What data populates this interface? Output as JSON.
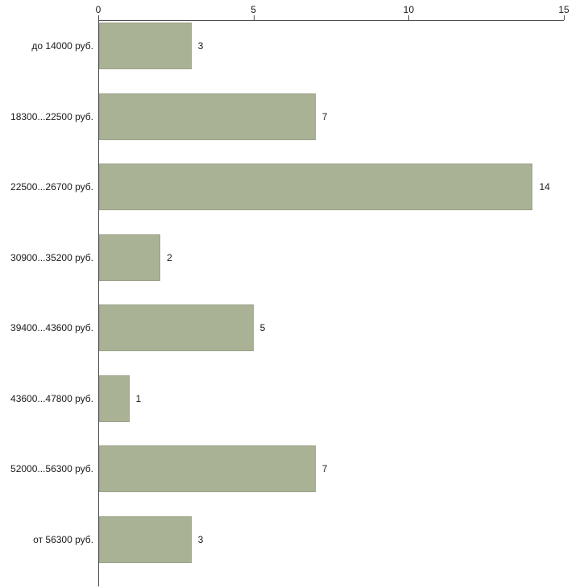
{
  "chart_data": {
    "type": "bar",
    "orientation": "horizontal",
    "title": "",
    "xlabel": "",
    "ylabel": "",
    "categories": [
      "до 14000 руб.",
      "18300...22500 руб.",
      "22500...26700 руб.",
      "30900...35200 руб.",
      "39400...43600 руб.",
      "43600...47800 руб.",
      "52000...56300 руб.",
      "от 56300 руб."
    ],
    "values": [
      3,
      7,
      14,
      2,
      5,
      1,
      7,
      3
    ],
    "value_labels": [
      "3",
      "7",
      "14",
      "2",
      "5",
      "1",
      "7",
      "3"
    ],
    "xlim": [
      0,
      15
    ],
    "x_ticks": [
      "0",
      "5",
      "10",
      "15"
    ],
    "x_tick_values": [
      0,
      5,
      10,
      15
    ],
    "grid": false,
    "legend": false,
    "colors": {
      "bar_fill": "#a9b295",
      "bar_border": "#99a287",
      "axis": "#4d4d4d",
      "text": "#1a1a1a",
      "background": "#ffffff"
    }
  }
}
